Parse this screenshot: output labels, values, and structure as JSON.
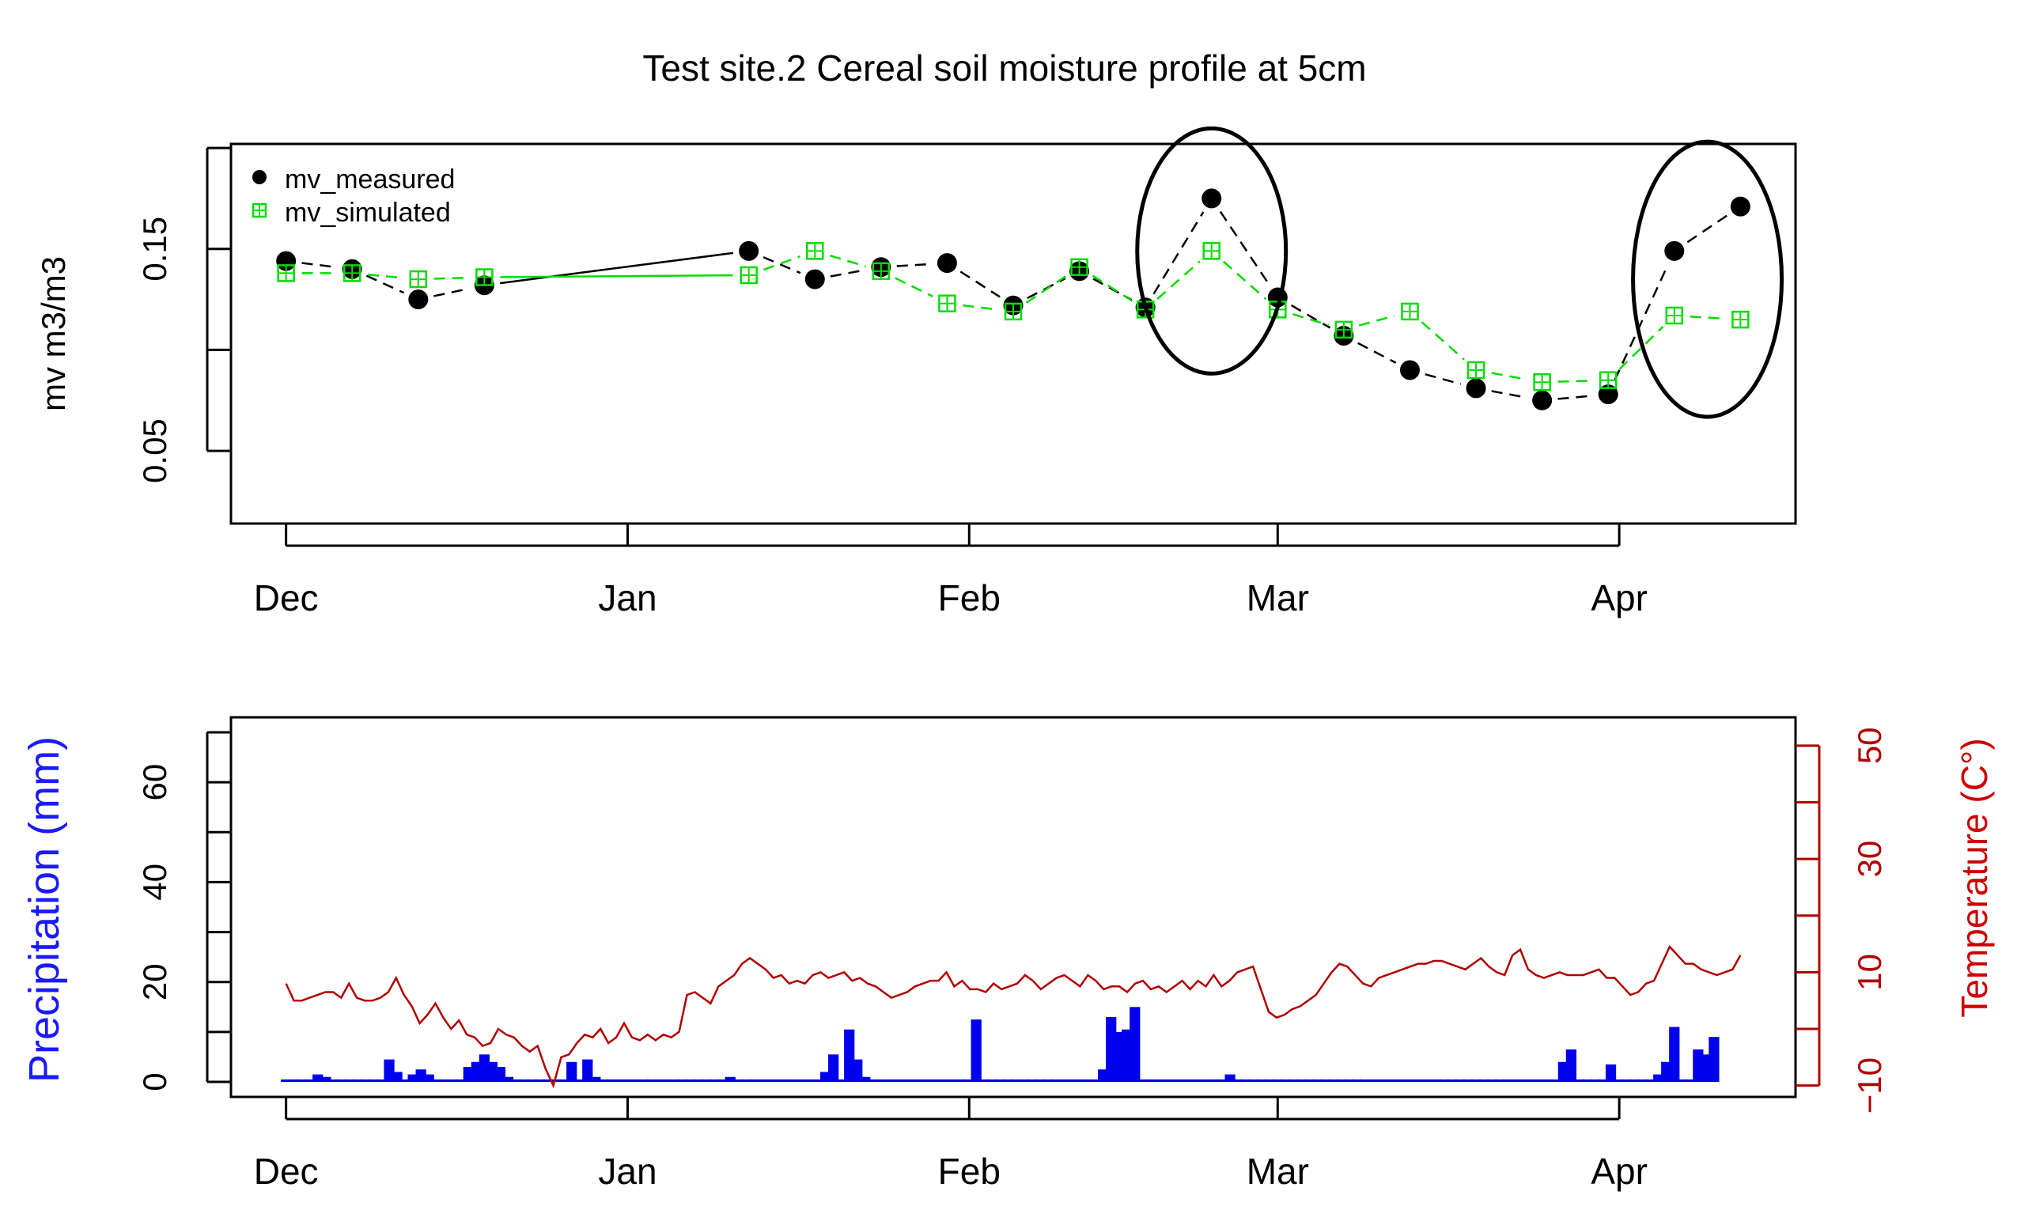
{
  "chart_data": [
    {
      "type": "scatter",
      "title": "Test site.2 Cereal soil moisture profile at 5cm",
      "xlabel": "",
      "ylabel": "mv m3/m3",
      "x_ticks": [
        {
          "label": "Dec",
          "day": 0
        },
        {
          "label": "Jan",
          "day": 31
        },
        {
          "label": "Feb",
          "day": 62
        },
        {
          "label": "Mar",
          "day": 90
        },
        {
          "label": "Apr",
          "day": 121
        }
      ],
      "xlim": [
        -5,
        137
      ],
      "ylim": [
        0.014,
        0.202
      ],
      "y_ticks": [
        0.05,
        0.1,
        0.15,
        0.2
      ],
      "y_tick_labels": [
        "0.05",
        "",
        "0.15",
        ""
      ],
      "legend": {
        "position": "top-left",
        "entries": [
          "mv_measured",
          "mv_simulated"
        ]
      },
      "series": [
        {
          "name": "mv_measured",
          "color": "#000000",
          "marker": "filled-circle",
          "x": [
            0,
            6,
            12,
            18,
            42,
            48,
            54,
            60,
            66,
            72,
            78,
            84,
            90,
            96,
            102,
            108,
            114,
            120,
            126,
            132
          ],
          "values": [
            0.144,
            0.14,
            0.125,
            0.132,
            0.149,
            0.135,
            0.141,
            0.143,
            0.122,
            0.139,
            0.121,
            0.175,
            0.126,
            0.107,
            0.09,
            0.081,
            0.075,
            0.078,
            0.149,
            0.171
          ]
        },
        {
          "name": "mv_simulated",
          "color": "#00dd00",
          "marker": "square-grid",
          "x": [
            0,
            6,
            12,
            18,
            42,
            48,
            54,
            60,
            66,
            72,
            78,
            84,
            90,
            96,
            102,
            108,
            114,
            120,
            126,
            132
          ],
          "values": [
            0.138,
            0.138,
            0.135,
            0.136,
            0.137,
            0.149,
            0.139,
            0.123,
            0.119,
            0.141,
            0.12,
            0.149,
            0.12,
            0.11,
            0.119,
            0.09,
            0.084,
            0.085,
            0.117,
            0.115
          ]
        }
      ],
      "annotations": [
        {
          "type": "ellipse",
          "around_x": 84,
          "around_y": 0.149
        },
        {
          "type": "ellipse",
          "around_x": 129,
          "around_y": 0.135
        }
      ]
    },
    {
      "type": "bar",
      "title": "",
      "ylabel": "Precipitation (mm)",
      "ylabel_color": "#1a1aff",
      "y2label": "Temperature (C°)",
      "y2label_color": "#cc0000",
      "x_ticks": [
        {
          "label": "Dec",
          "day": 0
        },
        {
          "label": "Jan",
          "day": 31
        },
        {
          "label": "Feb",
          "day": 62
        },
        {
          "label": "Mar",
          "day": 90
        },
        {
          "label": "Apr",
          "day": 121
        }
      ],
      "xlim": [
        -5,
        137
      ],
      "ylim": [
        -3,
        73
      ],
      "y_ticks": [
        0,
        10,
        20,
        30,
        40,
        50,
        60,
        70
      ],
      "y_tick_labels": [
        "0",
        "",
        "20",
        "",
        "40",
        "",
        "60",
        ""
      ],
      "y2lim": [
        -12,
        55
      ],
      "y2_ticks": [
        -10,
        0,
        10,
        20,
        30,
        40,
        50
      ],
      "y2_tick_labels": [
        "−10",
        "",
        "10",
        "",
        "30",
        "",
        "50"
      ],
      "series": [
        {
          "name": "Precipitation",
          "color": "#0000ee",
          "values": [
            0.5,
            0.5,
            0.5,
            0.5,
            1.5,
            1,
            0.5,
            0.5,
            0.5,
            0.5,
            0.5,
            0.5,
            0.5,
            4.5,
            2,
            0.5,
            1.5,
            2.5,
            1.5,
            0.5,
            0.5,
            0.5,
            0.5,
            3,
            4,
            5.5,
            4,
            3,
            1,
            0.5,
            0.5,
            0.5,
            0.5,
            0.5,
            0.5,
            0.5,
            4,
            0.5,
            4.5,
            1,
            0.5,
            0.5,
            0.5,
            0.5,
            0.5,
            0.5,
            0.5,
            0.5,
            0.5,
            0.5,
            0.5,
            0.5,
            0.5,
            0.5,
            0.5,
            0.5,
            1,
            0.5,
            0.5,
            0.5,
            0.5,
            0.5,
            0.5,
            0.5,
            0.5,
            0.5,
            0.5,
            0.5,
            2,
            5.5,
            0.5,
            10.5,
            4.5,
            1,
            0.5,
            0.5,
            0.5,
            0.5,
            0.5,
            0.5,
            0.5,
            0.5,
            0.5,
            0.5,
            0.5,
            0.5,
            0.5,
            12.5,
            0.5,
            0.5,
            0.5,
            0.5,
            0.5,
            0.5,
            0.5,
            0.5,
            0.5,
            0.5,
            0.5,
            0.5,
            0.5,
            0.5,
            0.5,
            2.5,
            13,
            10,
            10.5,
            15,
            0.5,
            0.5,
            0.5,
            0.5,
            0.5,
            0.5,
            0.5,
            0.5,
            0.5,
            0.5,
            0.5,
            1.5,
            0.5,
            0.5,
            0.5,
            0.5,
            0.5,
            0.5,
            0.5,
            0.5,
            0.5,
            0.5,
            0.5,
            0.5,
            0.5,
            0.5,
            0.5,
            0.5,
            0.5,
            0.5,
            0.5,
            0.5,
            0.5,
            0.5,
            0.5,
            0.5,
            0.5,
            0.5,
            0.5,
            0.5,
            0.5,
            0.5,
            0.5,
            0.5,
            0.5,
            0.5,
            0.5,
            0.5,
            0.5,
            0.5,
            0.5,
            0.5,
            0.5,
            4,
            6.5,
            0.5,
            0.5,
            0.5,
            0.5,
            3.5,
            0.5,
            0.5,
            0.5,
            0.5,
            0.5,
            1.5,
            4,
            11,
            0.5,
            0.5,
            6.5,
            5.5,
            9
          ]
        },
        {
          "name": "Temperature",
          "axis": "right",
          "color": "#b00000",
          "type": "line",
          "values": [
            8,
            5,
            5,
            5.5,
            6,
            6.5,
            6.5,
            5.5,
            8,
            5.5,
            5,
            5,
            5.5,
            6.5,
            9,
            6,
            4,
            1,
            2.5,
            4.5,
            2,
            0,
            1.5,
            -1,
            -1.5,
            -3,
            -2.5,
            0,
            -1,
            -1.5,
            -3,
            -4,
            -3,
            -7,
            -10,
            -5,
            -4.5,
            -2.5,
            -1,
            -1.5,
            0,
            -2.5,
            -1.5,
            1,
            -1.5,
            -2,
            -1,
            -2,
            -1,
            -1.5,
            -0.5,
            6,
            6.5,
            5.5,
            4.5,
            7.5,
            8.5,
            9.5,
            11.5,
            12.5,
            11.5,
            10.5,
            9,
            9.5,
            8,
            8.5,
            8,
            9.5,
            10,
            9,
            9.5,
            10,
            8.5,
            9,
            8,
            7.5,
            6.5,
            5.5,
            6,
            6.5,
            7.5,
            8,
            8.5,
            8.5,
            10,
            7.5,
            8.5,
            7,
            7,
            6.5,
            8,
            7,
            7.5,
            8,
            9.5,
            8.5,
            7,
            8,
            9,
            9.5,
            8.5,
            7.5,
            9.5,
            8.5,
            7,
            7.5,
            7.5,
            6.5,
            8,
            8.5,
            7,
            7.5,
            6.5,
            7.5,
            8.5,
            7,
            8.5,
            7.5,
            9.5,
            7.5,
            8.5,
            10,
            10.5,
            11,
            7,
            3,
            2,
            2.5,
            3.5,
            4,
            5,
            6,
            8,
            10,
            11.5,
            11,
            9.5,
            8,
            7.5,
            9,
            9.5,
            10,
            10.5,
            11,
            11.5,
            11.5,
            12,
            12,
            11.5,
            11,
            10.5,
            11.5,
            12.5,
            11,
            10,
            9.5,
            13,
            14,
            10.5,
            9.5,
            9,
            9.5,
            10,
            9.5,
            9.5,
            9.5,
            10,
            10.5,
            9,
            9,
            7.5,
            6,
            6.5,
            8,
            8.5,
            11.5,
            14.5,
            13,
            11.5,
            11.5,
            10.5,
            10,
            9.5,
            10,
            10.5,
            13
          ]
        }
      ]
    }
  ]
}
